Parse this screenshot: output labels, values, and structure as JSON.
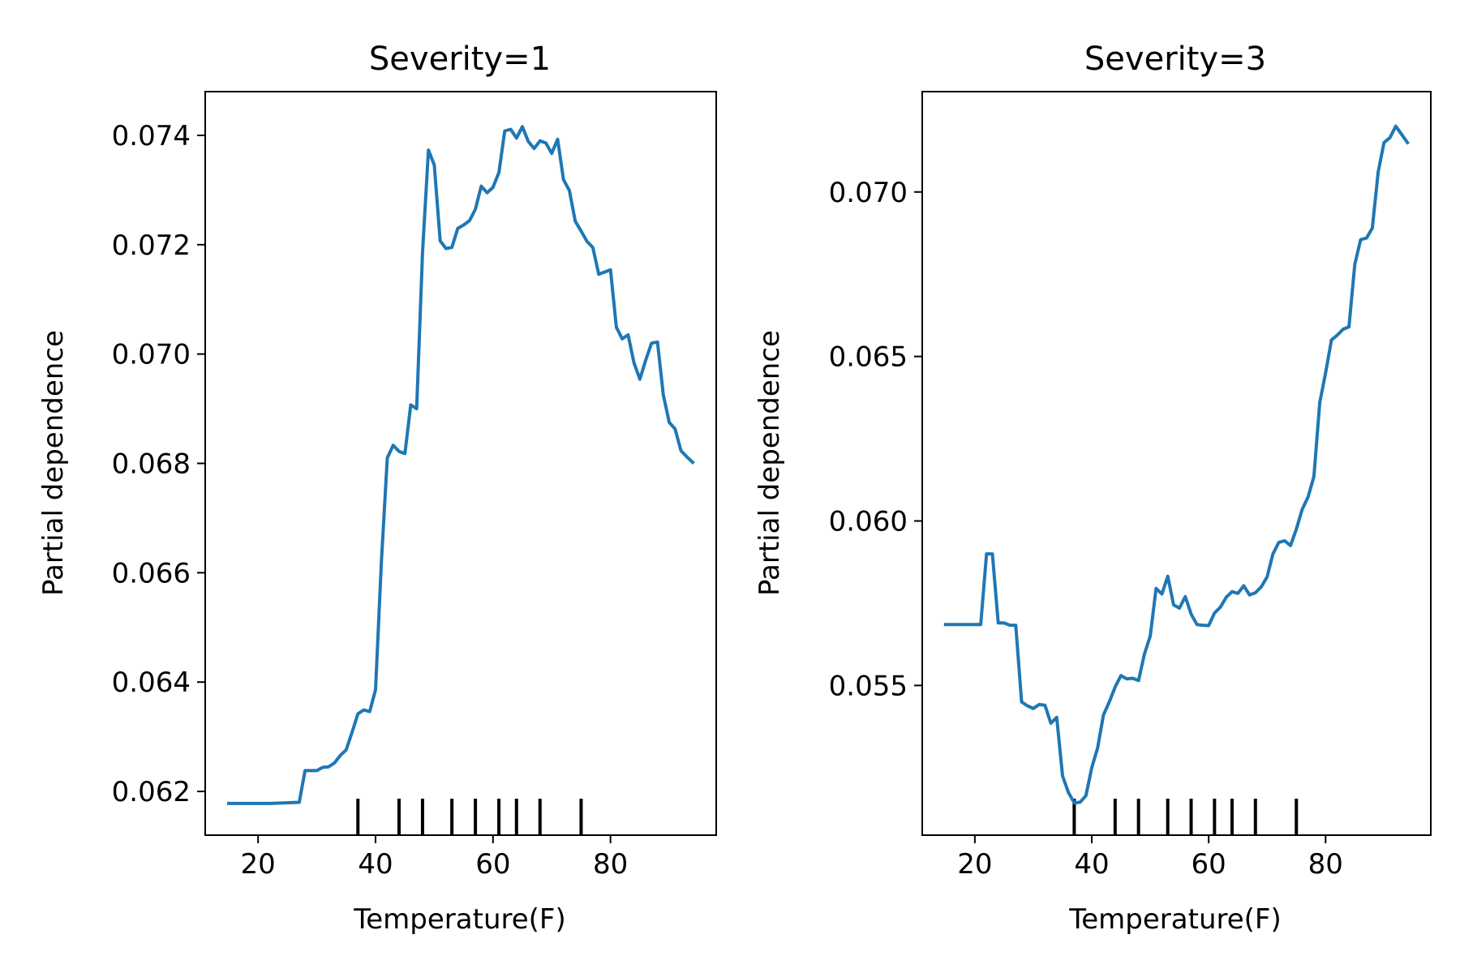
{
  "chart_data": [
    {
      "type": "line",
      "title": "Severity=1",
      "xlabel": "Temperature(F)",
      "ylabel": "Partial dependence",
      "xlim": [
        11.0,
        98.0
      ],
      "ylim": [
        0.0612,
        0.0748
      ],
      "xticks": [
        20,
        40,
        60,
        80
      ],
      "xtick_labels": [
        "20",
        "40",
        "60",
        "80"
      ],
      "yticks": [
        0.062,
        0.064,
        0.066,
        0.068,
        0.07,
        0.072,
        0.074
      ],
      "ytick_labels": [
        "0.062",
        "0.064",
        "0.066",
        "0.068",
        "0.070",
        "0.072",
        "0.074"
      ],
      "rug": [
        37,
        44,
        48,
        53,
        57,
        61,
        64,
        68,
        75
      ],
      "color": "#1f77b4",
      "series": [
        {
          "x": [
            15,
            22,
            27,
            28,
            30,
            31,
            32,
            33,
            34,
            35,
            36,
            37,
            38,
            39,
            40,
            41,
            42,
            43,
            44,
            45,
            46,
            47,
            48,
            49,
            50,
            51,
            52,
            53,
            54,
            55,
            56,
            57,
            58,
            59,
            60,
            61,
            62,
            63,
            64,
            65,
            66,
            67,
            68,
            69,
            70,
            71,
            72,
            73,
            74,
            75,
            76,
            77,
            78,
            79,
            80,
            81,
            82,
            83,
            84,
            85,
            86,
            87,
            88,
            89,
            90,
            91,
            92,
            93,
            94
          ],
          "y": [
            0.06178,
            0.06178,
            0.0618,
            0.06238,
            0.06238,
            0.06244,
            0.06245,
            0.06252,
            0.06266,
            0.06276,
            0.06308,
            0.06342,
            0.06349,
            0.06346,
            0.06386,
            0.0662,
            0.0681,
            0.06833,
            0.06822,
            0.06818,
            0.06907,
            0.069,
            0.07185,
            0.07373,
            0.07346,
            0.07207,
            0.07193,
            0.07195,
            0.0723,
            0.07236,
            0.07244,
            0.07265,
            0.07307,
            0.07295,
            0.07305,
            0.07332,
            0.07408,
            0.07411,
            0.07395,
            0.07416,
            0.07389,
            0.07376,
            0.0739,
            0.07386,
            0.07367,
            0.07393,
            0.07319,
            0.07299,
            0.07243,
            0.07225,
            0.07206,
            0.07195,
            0.07146,
            0.0715,
            0.07154,
            0.07049,
            0.07028,
            0.07035,
            0.06984,
            0.06954,
            0.06989,
            0.0702,
            0.07022,
            0.06925,
            0.06875,
            0.06863,
            0.06823,
            0.06812,
            0.06802
          ]
        }
      ]
    },
    {
      "type": "line",
      "title": "Severity=3",
      "xlabel": "Temperature(F)",
      "ylabel": "Partial dependence",
      "xlim": [
        11.0,
        98.0
      ],
      "ylim": [
        0.05045,
        0.07305
      ],
      "xticks": [
        20,
        40,
        60,
        80
      ],
      "xtick_labels": [
        "20",
        "40",
        "60",
        "80"
      ],
      "yticks": [
        0.055,
        0.06,
        0.065,
        0.07
      ],
      "ytick_labels": [
        "0.055",
        "0.060",
        "0.065",
        "0.070"
      ],
      "rug": [
        37,
        44,
        48,
        53,
        57,
        61,
        64,
        68,
        75
      ],
      "color": "#1f77b4",
      "series": [
        {
          "x": [
            15,
            19,
            21,
            22,
            23,
            24,
            25,
            26,
            27,
            28,
            29,
            30,
            31,
            32,
            33,
            34,
            35,
            36,
            37,
            38,
            39,
            40,
            41,
            42,
            43,
            44,
            45,
            46,
            47,
            48,
            49,
            50,
            51,
            52,
            53,
            54,
            55,
            56,
            57,
            58,
            59,
            60,
            61,
            62,
            63,
            64,
            65,
            66,
            67,
            68,
            69,
            70,
            71,
            72,
            73,
            74,
            75,
            76,
            77,
            78,
            79,
            80,
            81,
            82,
            83,
            84,
            85,
            86,
            87,
            88,
            89,
            90,
            91,
            92,
            93,
            94
          ],
          "y": [
            0.05685,
            0.05685,
            0.05685,
            0.059,
            0.059,
            0.0569,
            0.0569,
            0.05683,
            0.05683,
            0.0545,
            0.05438,
            0.0543,
            0.05442,
            0.0544,
            0.05385,
            0.05403,
            0.05225,
            0.05175,
            0.05143,
            0.05145,
            0.05165,
            0.0525,
            0.0531,
            0.0541,
            0.0545,
            0.05495,
            0.0553,
            0.0552,
            0.05522,
            0.05515,
            0.05595,
            0.0565,
            0.05795,
            0.05778,
            0.05832,
            0.05745,
            0.05735,
            0.0577,
            0.05717,
            0.05685,
            0.05683,
            0.05682,
            0.0572,
            0.05738,
            0.05768,
            0.05785,
            0.0578,
            0.05803,
            0.05775,
            0.05782,
            0.058,
            0.0583,
            0.059,
            0.05935,
            0.0594,
            0.05925,
            0.05975,
            0.06035,
            0.06073,
            0.06135,
            0.0636,
            0.0645,
            0.0655,
            0.06565,
            0.06583,
            0.0659,
            0.0678,
            0.06855,
            0.0686,
            0.0689,
            0.0706,
            0.0715,
            0.07165,
            0.072,
            0.07175,
            0.0715
          ]
        }
      ]
    }
  ]
}
